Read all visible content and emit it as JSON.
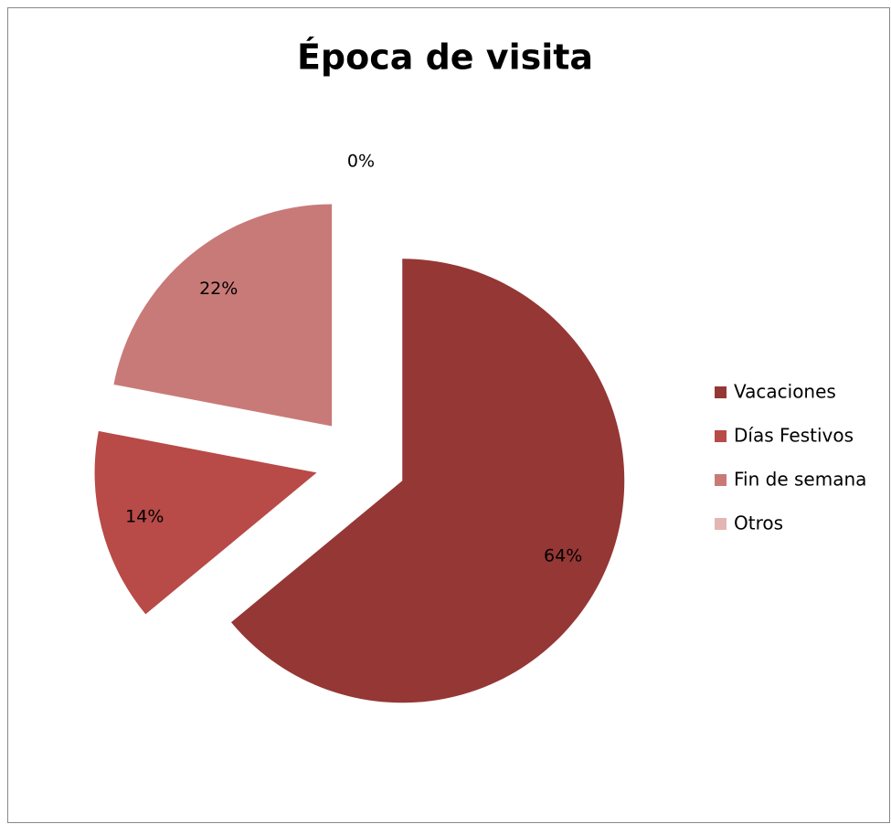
{
  "chart_data": {
    "type": "pie",
    "title": "Época de visita",
    "categories": [
      "Vacaciones",
      "Días Festivos",
      "Fin de semana",
      "Otros"
    ],
    "values": [
      64,
      14,
      22,
      0
    ],
    "value_labels": [
      "64%",
      "14%",
      "22%",
      "0%"
    ],
    "colors": [
      "#953735",
      "#b84a48",
      "#c87a78",
      "#e3b5b4"
    ],
    "legend": "right"
  }
}
